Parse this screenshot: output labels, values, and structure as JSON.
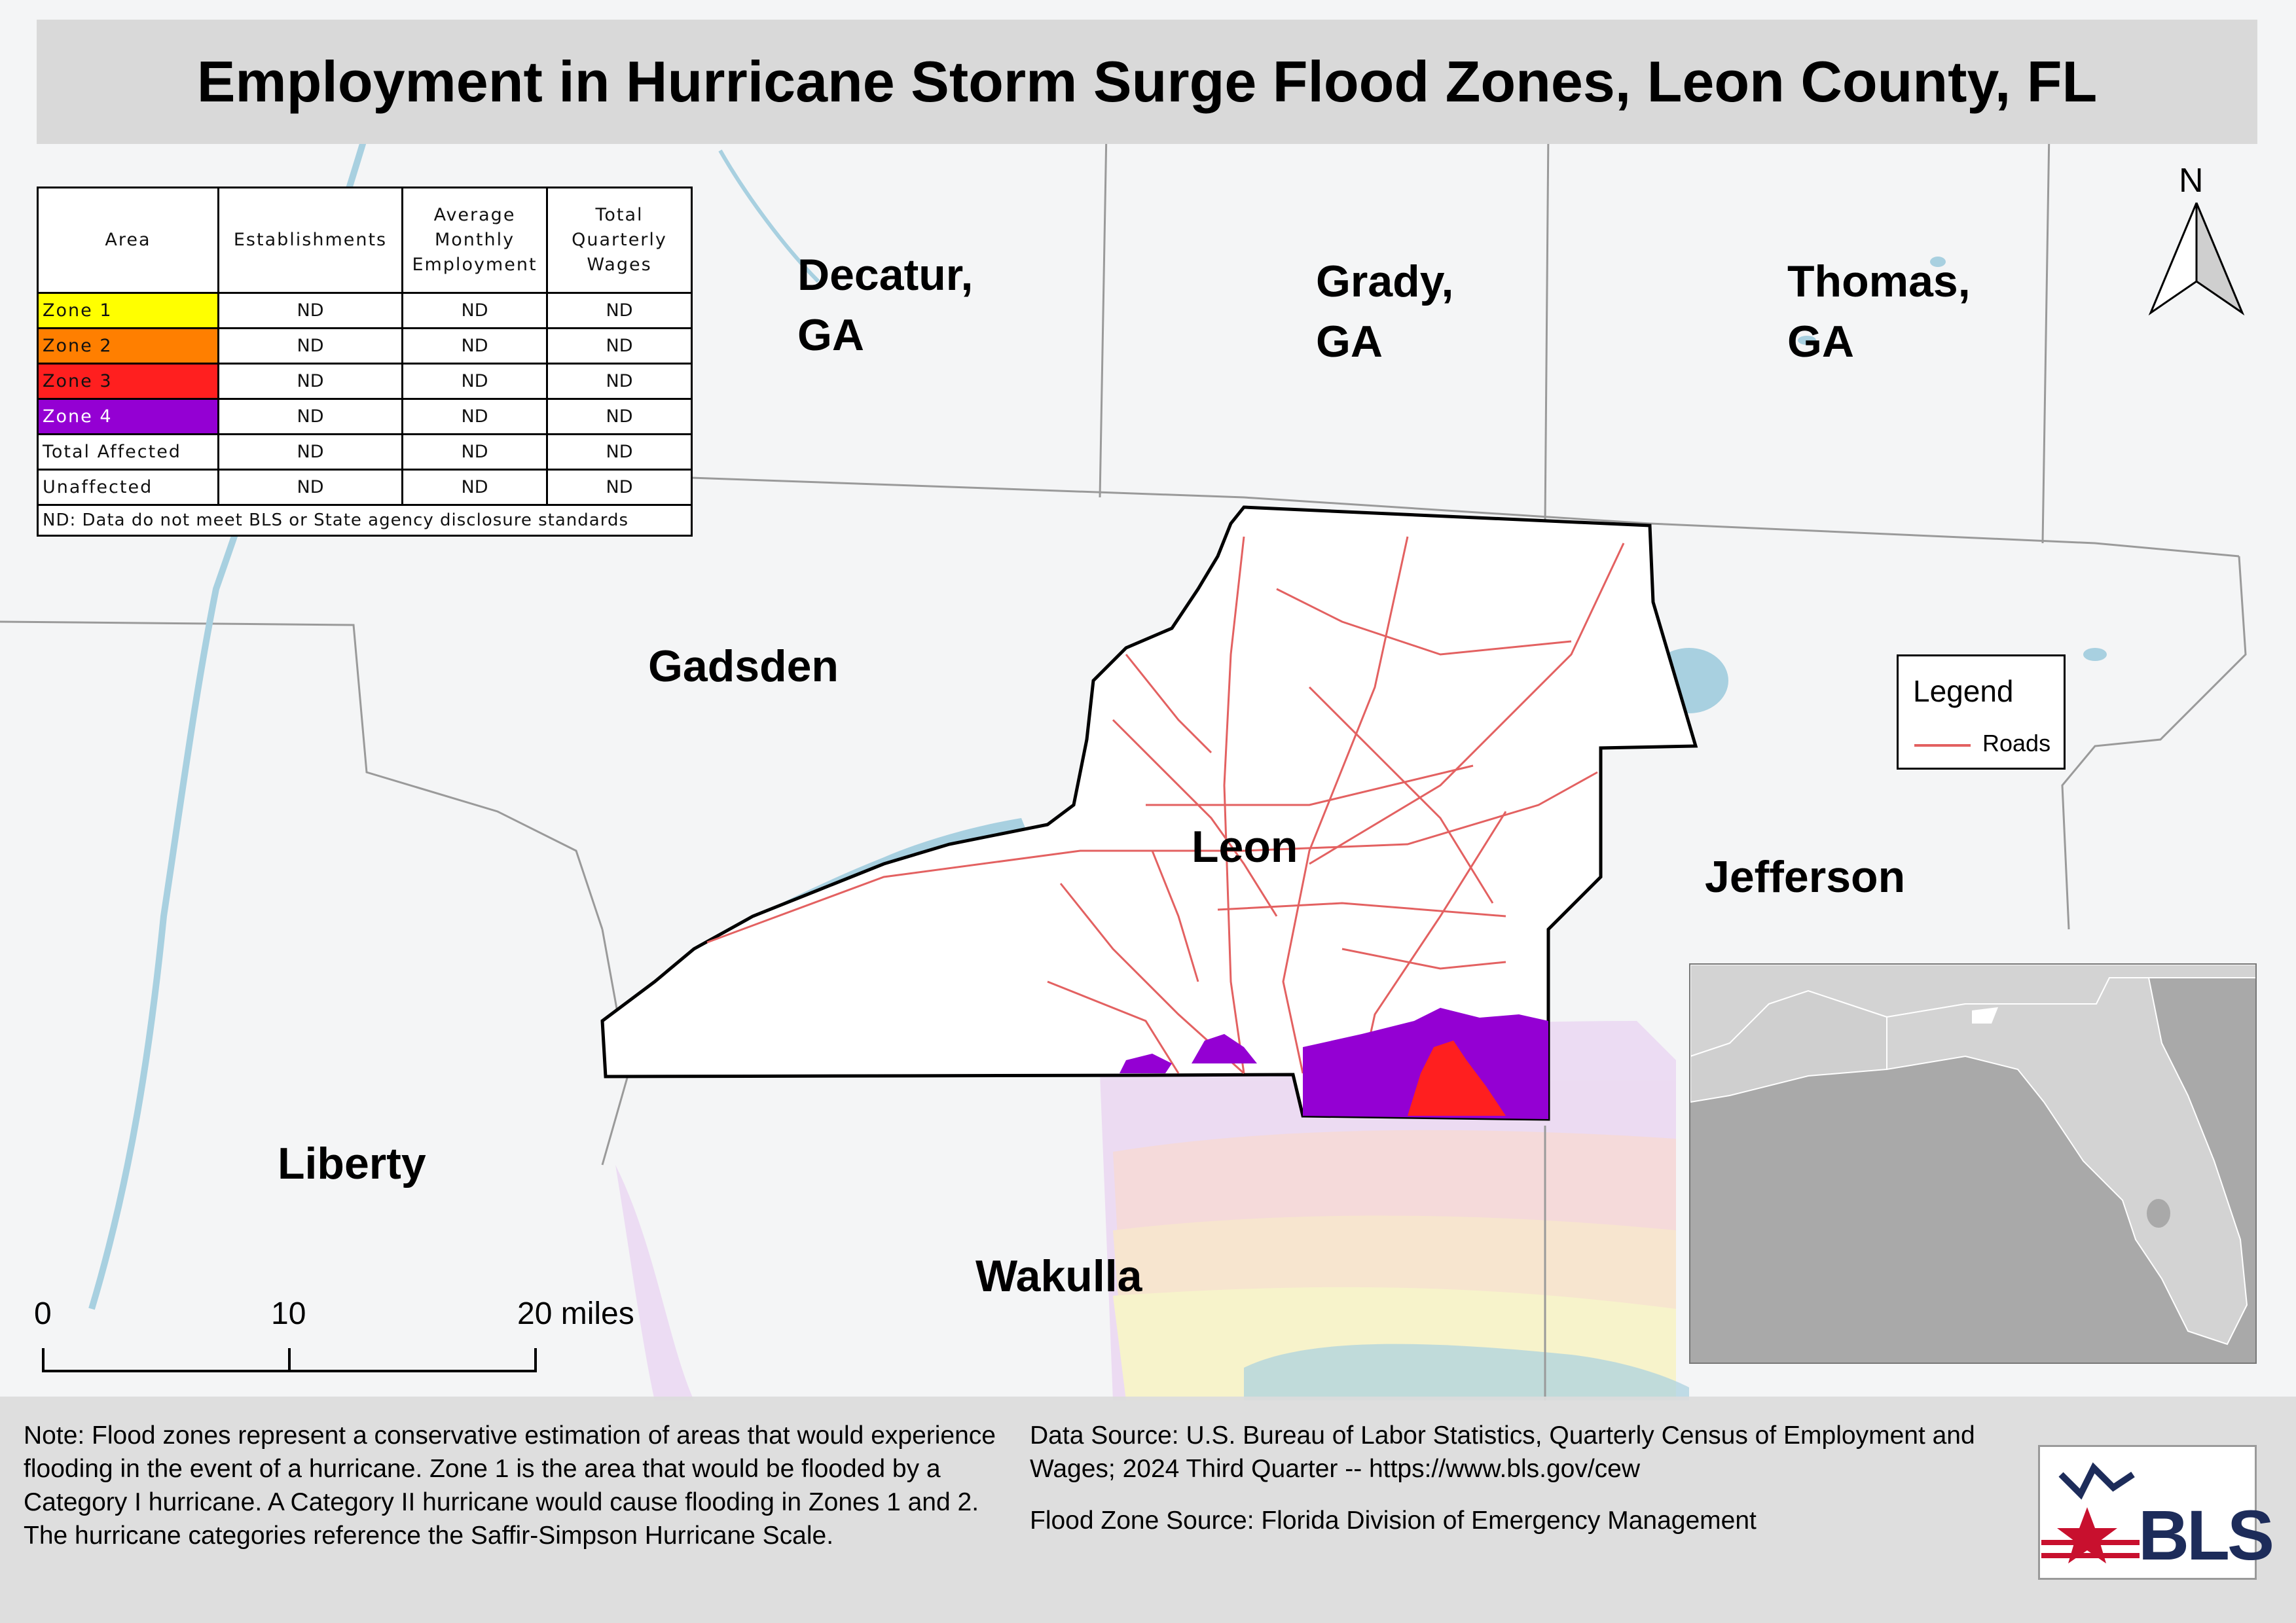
{
  "title": "Employment in Hurricane Storm Surge Flood Zones, Leon County, FL",
  "table": {
    "headers": [
      "Area",
      "Establishments",
      "Average Monthly Employment",
      "Total Quarterly Wages"
    ],
    "rows": [
      {
        "area": "Zone 1",
        "color": "#ffff00",
        "establishments": "ND",
        "employment": "ND",
        "wages": "ND"
      },
      {
        "area": "Zone 2",
        "color": "#ff7f00",
        "establishments": "ND",
        "employment": "ND",
        "wages": "ND"
      },
      {
        "area": "Zone 3",
        "color": "#ff1f1f",
        "establishments": "ND",
        "employment": "ND",
        "wages": "ND"
      },
      {
        "area": "Zone 4",
        "color": "#9400d3",
        "establishments": "ND",
        "employment": "ND",
        "wages": "ND"
      },
      {
        "area": "Total Affected",
        "color": "#ffffff",
        "establishments": "ND",
        "employment": "ND",
        "wages": "ND"
      },
      {
        "area": "Unaffected",
        "color": "#ffffff",
        "establishments": "ND",
        "employment": "ND",
        "wages": "ND"
      }
    ],
    "footnote": "ND: Data do not meet BLS or State agency disclosure standards"
  },
  "places": {
    "decatur": "Decatur,\nGA",
    "grady": "Grady,\nGA",
    "thomas": "Thomas,\nGA",
    "gadsden": "Gadsden",
    "leon": "Leon",
    "jefferson": "Jefferson",
    "liberty": "Liberty",
    "wakulla": "Wakulla"
  },
  "legend": {
    "title": "Legend",
    "roads_label": "Roads",
    "roads_color": "#e36161"
  },
  "north_arrow": "N",
  "scale_bar": {
    "ticks": [
      "0",
      "10",
      "20 miles"
    ]
  },
  "note": "Note: Flood zones represent a conservative estimation of areas that would experience flooding in the event of a hurricane. Zone 1 is the area that would be flooded by a Category I hurricane. A Category II hurricane would cause flooding in Zones 1 and 2. The hurricane categories reference the Saffir-Simpson Hurricane Scale.",
  "data_source": "Data Source: U.S. Bureau of Labor Statistics, Quarterly Census of Employment and Wages; 2024 Third Quarter -- https://www.bls.gov/cew",
  "flood_source": "Flood Zone Source: Florida Division of Emergency Management",
  "logo_text": "BLS",
  "colors": {
    "water": "#a8d0e0",
    "county_border": "#000000",
    "zone4": "#9400d3",
    "zone3": "#ff1f1f"
  }
}
